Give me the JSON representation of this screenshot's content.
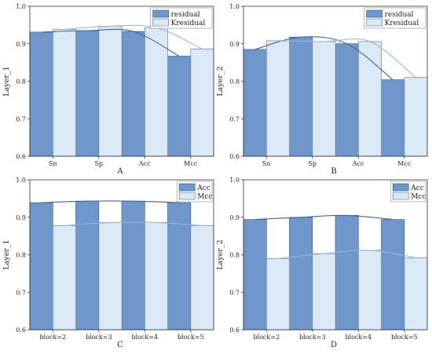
{
  "colors": {
    "dark_bar": "#6f97cc",
    "dark_stroke": "#2f4f7a",
    "light_bar": "#dbe8f6",
    "light_stroke": "#5a6f8c",
    "dark_curve": "#3e6599",
    "light_curve": "#97b8d9"
  },
  "chart_data": [
    {
      "type": "bar",
      "panel_label": "A",
      "categories": [
        "Sn",
        "Sp",
        "Acc",
        "Mcc"
      ],
      "series": [
        {
          "name": "residual",
          "values": [
            0.931,
            0.935,
            0.933,
            0.867
          ]
        },
        {
          "name": "Kresidual",
          "values": [
            0.938,
            0.947,
            0.943,
            0.886
          ]
        }
      ],
      "ylabel": "Layer_1",
      "ylim": [
        0.6,
        1.0
      ],
      "yticks": [
        "0.6",
        "0.7",
        "0.8",
        "0.9",
        "1.0"
      ],
      "legend": "top-right"
    },
    {
      "type": "bar",
      "panel_label": "B",
      "categories": [
        "Sn",
        "Sp",
        "Acc",
        "Mcc"
      ],
      "series": [
        {
          "name": "residual",
          "values": [
            0.885,
            0.918,
            0.9,
            0.804
          ]
        },
        {
          "name": "Kresidual",
          "values": [
            0.908,
            0.906,
            0.906,
            0.81
          ]
        }
      ],
      "ylabel": "Layer_2",
      "ylim": [
        0.6,
        1.0
      ],
      "yticks": [
        "0.6",
        "0.7",
        "0.8",
        "0.9",
        "1.0"
      ],
      "legend": "top-right"
    },
    {
      "type": "bar",
      "panel_label": "C",
      "categories": [
        "block=2",
        "block=3",
        "block=4",
        "block=5"
      ],
      "series": [
        {
          "name": "Acc",
          "values": [
            0.939,
            0.943,
            0.943,
            0.939
          ]
        },
        {
          "name": "Mcc",
          "values": [
            0.878,
            0.886,
            0.886,
            0.878
          ]
        }
      ],
      "ylabel": "Layer_1",
      "ylim": [
        0.6,
        1.0
      ],
      "yticks": [
        "0.6",
        "0.7",
        "0.8",
        "0.9",
        "1.0"
      ],
      "legend": "top-right"
    },
    {
      "type": "bar",
      "panel_label": "D",
      "categories": [
        "block=2",
        "block=3",
        "block=4",
        "block=5"
      ],
      "series": [
        {
          "name": "Acc",
          "values": [
            0.894,
            0.9,
            0.905,
            0.894
          ]
        },
        {
          "name": "Mcc",
          "values": [
            0.79,
            0.803,
            0.812,
            0.792
          ]
        }
      ],
      "ylabel": "Layer_2",
      "ylim": [
        0.6,
        1.0
      ],
      "yticks": [
        "0.6",
        "0.7",
        "0.8",
        "0.9",
        "1.0"
      ],
      "legend": "top-right"
    }
  ]
}
